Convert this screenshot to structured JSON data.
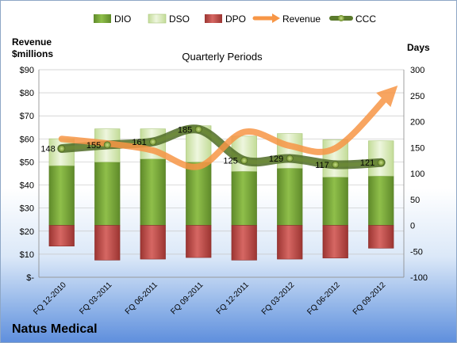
{
  "chart_data": {
    "type": "bar",
    "title": "Quarterly Periods",
    "company": "Natus Medical",
    "left_axis_label": [
      "Revenue",
      "$millions"
    ],
    "right_axis_label": "Days",
    "categories": [
      "FQ 12-2010",
      "FQ 03-2011",
      "FQ 06-2011",
      "FQ 09-2011",
      "FQ 12-2011",
      "FQ 03-2012",
      "FQ 06-2012",
      "FQ 09-2012"
    ],
    "left_ticks": [
      "$-",
      "$10",
      "$20",
      "$30",
      "$40",
      "$50",
      "$60",
      "$70",
      "$80",
      "$90"
    ],
    "right_ticks": [
      "-100",
      "-50",
      "0",
      "50",
      "100",
      "150",
      "200",
      "250",
      "300"
    ],
    "ylim_left": [
      0,
      90
    ],
    "ylim_right": [
      -100,
      300
    ],
    "legend_position": "top",
    "series": [
      {
        "name": "DIO",
        "kind": "stacked-bar",
        "color": "#77a33a",
        "values": [
          115,
          122,
          128,
          122,
          104,
          110,
          93,
          95
        ]
      },
      {
        "name": "DSO",
        "kind": "stacked-bar",
        "color": "#d7e9b6",
        "values": [
          52,
          64,
          58,
          70,
          68,
          67,
          72,
          68
        ]
      },
      {
        "name": "DPO",
        "kind": "stacked-bar-negative",
        "color": "#c0504d",
        "values": [
          -40,
          -67,
          -65,
          -62,
          -67,
          -65,
          -63,
          -44
        ]
      },
      {
        "name": "Revenue",
        "kind": "line-arrow",
        "color": "#f79646",
        "values": [
          60,
          58,
          55,
          48,
          63,
          57,
          56,
          80
        ]
      },
      {
        "name": "CCC",
        "kind": "line-markers",
        "color": "#5b7a2d",
        "values": [
          148,
          155,
          161,
          185,
          125,
          129,
          117,
          121
        ],
        "labels": [
          "148",
          "155",
          "161",
          "185",
          "125",
          "129",
          "117",
          "121"
        ]
      }
    ]
  }
}
